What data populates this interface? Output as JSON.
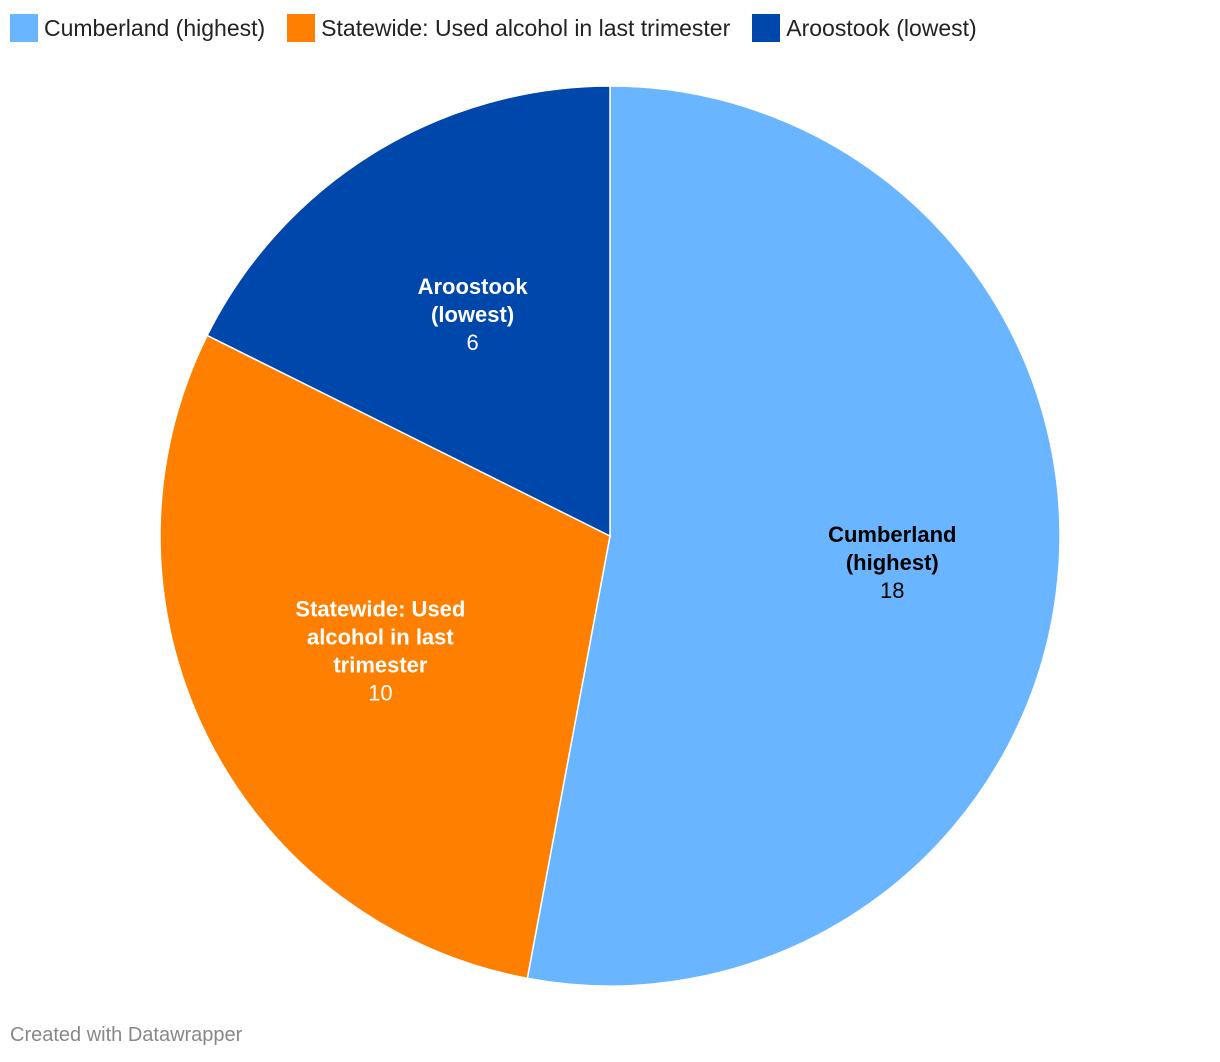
{
  "chart_data": {
    "type": "pie",
    "title": "",
    "categories": [
      "Cumberland (highest)",
      "Statewide: Used alcohol in last trimester",
      "Aroostook (lowest)"
    ],
    "values": [
      18,
      10,
      6
    ],
    "colors": [
      "#6ab5ff",
      "#ff7f00",
      "#0047ab"
    ],
    "label_colors": [
      "#000000",
      "#ffffff",
      "#ffffff"
    ],
    "slice_label_lines": [
      [
        "Cumberland",
        "(highest)"
      ],
      [
        "Statewide: Used",
        "alcohol in last",
        "trimester"
      ],
      [
        "Aroostook",
        "(lowest)"
      ]
    ],
    "value_labels": [
      "18",
      "10",
      "6"
    ],
    "legend_position": "top-left",
    "start_angle": "12 o'clock, clockwise"
  },
  "legend": {
    "items": [
      {
        "label": "Cumberland (highest)",
        "color": "#6ab5ff"
      },
      {
        "label": "Statewide: Used alcohol in last trimester",
        "color": "#ff7f00"
      },
      {
        "label": "Aroostook (lowest)",
        "color": "#0047ab"
      }
    ]
  },
  "footer": {
    "credit": "Created with Datawrapper"
  }
}
